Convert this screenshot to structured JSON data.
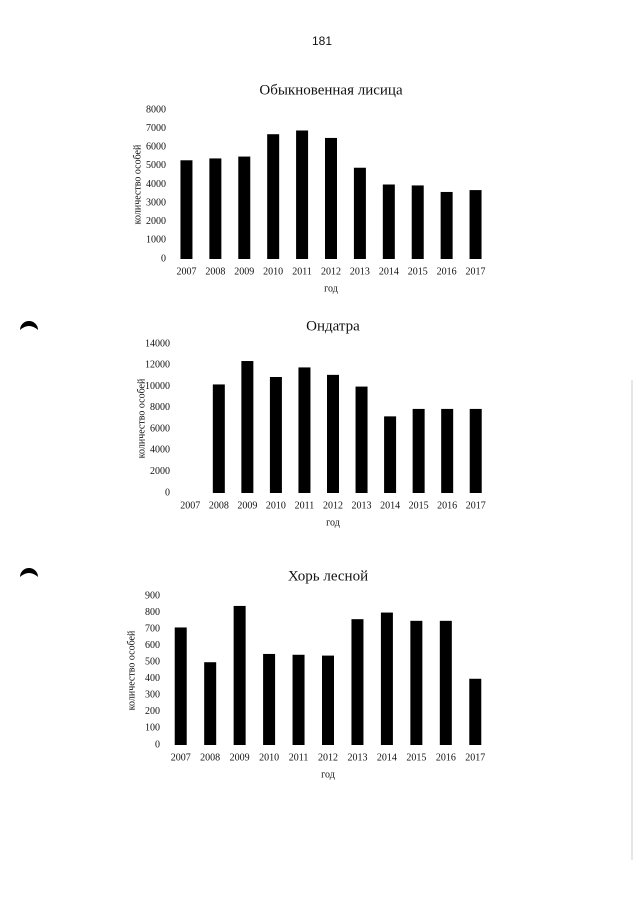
{
  "page_number": "181",
  "chart_data": [
    {
      "type": "bar",
      "title": "Обыкновенная лисица",
      "x_label": "год",
      "y_label": "количество особей",
      "categories": [
        "2007",
        "2008",
        "2009",
        "2010",
        "2011",
        "2012",
        "2013",
        "2014",
        "2015",
        "2016",
        "2017"
      ],
      "values": [
        5300,
        5400,
        5500,
        6700,
        6900,
        6500,
        4900,
        4000,
        3950,
        3600,
        3700
      ],
      "color": "#000000",
      "ylim": [
        0,
        8000
      ],
      "yticks": [
        0,
        1000,
        2000,
        3000,
        4000,
        5000,
        6000,
        7000,
        8000
      ],
      "grid": false
    },
    {
      "type": "bar",
      "title": "Ондатра",
      "x_label": "год",
      "y_label": "количество особей",
      "categories": [
        "2007",
        "2008",
        "2009",
        "2010",
        "2011",
        "2012",
        "2013",
        "2014",
        "2015",
        "2016",
        "2017"
      ],
      "values": [
        null,
        10200,
        12400,
        10900,
        11800,
        11100,
        10000,
        7200,
        7900,
        7900,
        7900
      ],
      "color": "#000000",
      "ylim": [
        0,
        14000
      ],
      "yticks": [
        0,
        2000,
        4000,
        6000,
        8000,
        10000,
        12000,
        14000
      ],
      "grid": false
    },
    {
      "type": "bar",
      "title": "Хорь лесной",
      "x_label": "год",
      "y_label": "количество особей",
      "categories": [
        "2007",
        "2008",
        "2009",
        "2010",
        "2011",
        "2012",
        "2013",
        "2014",
        "2015",
        "2016",
        "2017"
      ],
      "values": [
        710,
        500,
        840,
        550,
        545,
        540,
        760,
        800,
        750,
        750,
        400
      ],
      "color": "#000000",
      "ylim": [
        0,
        900
      ],
      "yticks": [
        0,
        100,
        200,
        300,
        400,
        500,
        600,
        700,
        800,
        900
      ],
      "grid": false
    }
  ]
}
